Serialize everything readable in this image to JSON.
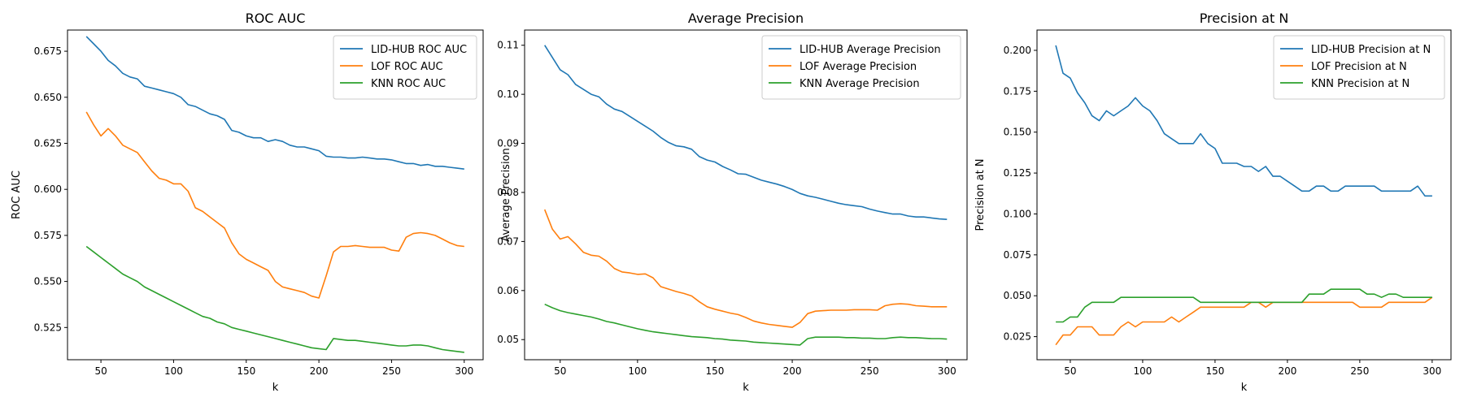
{
  "chart_data": [
    {
      "type": "line",
      "title": "ROC AUC",
      "xlabel": "k",
      "ylabel": "ROC AUC",
      "xlim": [
        27,
        313
      ],
      "ylim": [
        0.5075,
        0.6865
      ],
      "xticks": [
        50,
        100,
        150,
        200,
        250,
        300
      ],
      "yticks": [
        0.525,
        0.55,
        0.575,
        0.6,
        0.625,
        0.65,
        0.675
      ],
      "ytick_labels": [
        "0.525",
        "0.550",
        "0.575",
        "0.600",
        "0.625",
        "0.650",
        "0.675"
      ],
      "grid": false,
      "legend": "top-right",
      "x": [
        40,
        45,
        50,
        55,
        60,
        65,
        70,
        75,
        80,
        85,
        90,
        95,
        100,
        105,
        110,
        115,
        120,
        125,
        130,
        135,
        140,
        145,
        150,
        155,
        160,
        165,
        170,
        175,
        180,
        185,
        190,
        195,
        200,
        205,
        210,
        215,
        220,
        225,
        230,
        235,
        240,
        245,
        250,
        255,
        260,
        265,
        270,
        275,
        280,
        285,
        290,
        295,
        300
      ],
      "series": [
        {
          "name": "LID-HUB ROC AUC",
          "color": "#1f77b4",
          "values": [
            0.683,
            0.679,
            0.675,
            0.67,
            0.667,
            0.663,
            0.661,
            0.66,
            0.656,
            0.655,
            0.654,
            0.653,
            0.652,
            0.65,
            0.646,
            0.645,
            0.643,
            0.641,
            0.64,
            0.638,
            0.632,
            0.631,
            0.629,
            0.628,
            0.628,
            0.626,
            0.627,
            0.626,
            0.624,
            0.623,
            0.623,
            0.622,
            0.621,
            0.618,
            0.6175,
            0.6175,
            0.617,
            0.617,
            0.6175,
            0.617,
            0.6165,
            0.6165,
            0.616,
            0.615,
            0.614,
            0.614,
            0.613,
            0.6135,
            0.6125,
            0.6125,
            0.612,
            0.6115,
            0.611
          ]
        },
        {
          "name": "LOF ROC AUC",
          "color": "#ff7f0e",
          "values": [
            0.642,
            0.635,
            0.629,
            0.633,
            0.629,
            0.624,
            0.622,
            0.62,
            0.615,
            0.61,
            0.606,
            0.605,
            0.603,
            0.603,
            0.599,
            0.59,
            0.588,
            0.585,
            0.582,
            0.579,
            0.571,
            0.565,
            0.562,
            0.56,
            0.558,
            0.556,
            0.55,
            0.547,
            0.546,
            0.545,
            0.544,
            0.542,
            0.541,
            0.553,
            0.566,
            0.569,
            0.569,
            0.5695,
            0.569,
            0.5685,
            0.5685,
            0.5685,
            0.567,
            0.5665,
            0.574,
            0.576,
            0.5765,
            0.576,
            0.575,
            0.573,
            0.571,
            0.5695,
            0.569
          ]
        },
        {
          "name": "KNN ROC AUC",
          "color": "#2ca02c",
          "values": [
            0.569,
            0.566,
            0.563,
            0.56,
            0.557,
            0.554,
            0.552,
            0.55,
            0.547,
            0.545,
            0.543,
            0.541,
            0.539,
            0.537,
            0.535,
            0.533,
            0.531,
            0.53,
            0.528,
            0.527,
            0.525,
            0.524,
            0.523,
            0.522,
            0.521,
            0.52,
            0.519,
            0.518,
            0.517,
            0.516,
            0.515,
            0.514,
            0.5135,
            0.513,
            0.519,
            0.5185,
            0.518,
            0.518,
            0.5175,
            0.517,
            0.5165,
            0.516,
            0.5155,
            0.515,
            0.515,
            0.5155,
            0.5155,
            0.515,
            0.514,
            0.513,
            0.5125,
            0.512,
            0.5115
          ]
        }
      ]
    },
    {
      "type": "line",
      "title": "Average Precision",
      "xlabel": "k",
      "ylabel": "Average Precision",
      "xlim": [
        27,
        313
      ],
      "ylim": [
        0.0459,
        0.1131
      ],
      "xticks": [
        50,
        100,
        150,
        200,
        250,
        300
      ],
      "yticks": [
        0.05,
        0.06,
        0.07,
        0.08,
        0.09,
        0.1,
        0.11
      ],
      "ytick_labels": [
        "0.05",
        "0.06",
        "0.07",
        "0.08",
        "0.09",
        "0.10",
        "0.11"
      ],
      "grid": false,
      "legend": "top-right",
      "x": [
        40,
        45,
        50,
        55,
        60,
        65,
        70,
        75,
        80,
        85,
        90,
        95,
        100,
        105,
        110,
        115,
        120,
        125,
        130,
        135,
        140,
        145,
        150,
        155,
        160,
        165,
        170,
        175,
        180,
        185,
        190,
        195,
        200,
        205,
        210,
        215,
        220,
        225,
        230,
        235,
        240,
        245,
        250,
        255,
        260,
        265,
        270,
        275,
        280,
        285,
        290,
        295,
        300
      ],
      "series": [
        {
          "name": "LID-HUB Average Precision",
          "color": "#1f77b4",
          "values": [
            0.11,
            0.1075,
            0.105,
            0.104,
            0.102,
            0.101,
            0.1,
            0.0995,
            0.098,
            0.097,
            0.0965,
            0.0955,
            0.0945,
            0.0935,
            0.0925,
            0.0912,
            0.0902,
            0.0895,
            0.0893,
            0.0888,
            0.0873,
            0.0866,
            0.0862,
            0.0853,
            0.0846,
            0.0838,
            0.0837,
            0.0831,
            0.0825,
            0.0821,
            0.0817,
            0.0812,
            0.0806,
            0.0798,
            0.0793,
            0.079,
            0.0786,
            0.0782,
            0.0778,
            0.0775,
            0.0773,
            0.0771,
            0.0766,
            0.0762,
            0.0759,
            0.0756,
            0.0756,
            0.0752,
            0.075,
            0.075,
            0.0748,
            0.0746,
            0.0745
          ]
        },
        {
          "name": "LOF Average Precision",
          "color": "#ff7f0e",
          "values": [
            0.0765,
            0.0725,
            0.0705,
            0.071,
            0.0695,
            0.0678,
            0.0672,
            0.067,
            0.066,
            0.0645,
            0.0638,
            0.0636,
            0.0633,
            0.0634,
            0.0626,
            0.0608,
            0.0603,
            0.0598,
            0.0594,
            0.0589,
            0.0577,
            0.0567,
            0.0562,
            0.0558,
            0.0554,
            0.0551,
            0.0545,
            0.0538,
            0.0534,
            0.0531,
            0.0529,
            0.0527,
            0.0525,
            0.0535,
            0.0553,
            0.0558,
            0.0559,
            0.056,
            0.056,
            0.056,
            0.0561,
            0.0561,
            0.0561,
            0.056,
            0.0569,
            0.0572,
            0.0573,
            0.0572,
            0.0569,
            0.0568,
            0.0567,
            0.0567,
            0.0567
          ]
        },
        {
          "name": "KNN Average Precision",
          "color": "#2ca02c",
          "values": [
            0.0572,
            0.0565,
            0.0559,
            0.0555,
            0.0552,
            0.0549,
            0.0546,
            0.0542,
            0.0537,
            0.0534,
            0.053,
            0.0526,
            0.0522,
            0.0519,
            0.0516,
            0.0514,
            0.0512,
            0.051,
            0.0508,
            0.0506,
            0.0505,
            0.0504,
            0.0502,
            0.0501,
            0.0499,
            0.0498,
            0.0497,
            0.0495,
            0.0494,
            0.0493,
            0.0492,
            0.0491,
            0.049,
            0.0489,
            0.0502,
            0.0505,
            0.0505,
            0.0505,
            0.0505,
            0.0504,
            0.0504,
            0.0503,
            0.0503,
            0.0502,
            0.0502,
            0.0504,
            0.0505,
            0.0504,
            0.0504,
            0.0503,
            0.0502,
            0.0502,
            0.0501
          ]
        }
      ]
    },
    {
      "type": "line",
      "title": "Precision at N",
      "xlabel": "k",
      "ylabel": "Precision at N",
      "xlim": [
        27,
        313
      ],
      "ylim": [
        0.0109,
        0.2124
      ],
      "xticks": [
        50,
        100,
        150,
        200,
        250,
        300
      ],
      "yticks": [
        0.025,
        0.05,
        0.075,
        0.1,
        0.125,
        0.15,
        0.175,
        0.2
      ],
      "ytick_labels": [
        "0.025",
        "0.050",
        "0.075",
        "0.100",
        "0.125",
        "0.150",
        "0.175",
        "0.200"
      ],
      "grid": false,
      "legend": "top-right",
      "x": [
        40,
        45,
        50,
        55,
        60,
        65,
        70,
        75,
        80,
        85,
        90,
        95,
        100,
        105,
        110,
        115,
        120,
        125,
        130,
        135,
        140,
        145,
        150,
        155,
        160,
        165,
        170,
        175,
        180,
        185,
        190,
        195,
        200,
        205,
        210,
        215,
        220,
        225,
        230,
        235,
        240,
        245,
        250,
        255,
        260,
        265,
        270,
        275,
        280,
        285,
        290,
        295,
        300
      ],
      "series": [
        {
          "name": "LID-HUB Precision at N",
          "color": "#1f77b4",
          "values": [
            0.203,
            0.186,
            0.183,
            0.174,
            0.168,
            0.16,
            0.157,
            0.163,
            0.16,
            0.163,
            0.166,
            0.171,
            0.166,
            0.163,
            0.157,
            0.149,
            0.146,
            0.143,
            0.143,
            0.143,
            0.149,
            0.143,
            0.14,
            0.131,
            0.131,
            0.131,
            0.129,
            0.129,
            0.126,
            0.129,
            0.123,
            0.123,
            0.12,
            0.117,
            0.114,
            0.114,
            0.117,
            0.117,
            0.114,
            0.114,
            0.117,
            0.117,
            0.117,
            0.117,
            0.117,
            0.114,
            0.114,
            0.114,
            0.114,
            0.114,
            0.117,
            0.111,
            0.111
          ]
        },
        {
          "name": "LOF Precision at N",
          "color": "#ff7f0e",
          "values": [
            0.02,
            0.026,
            0.026,
            0.031,
            0.031,
            0.031,
            0.026,
            0.026,
            0.026,
            0.031,
            0.034,
            0.031,
            0.034,
            0.034,
            0.034,
            0.034,
            0.037,
            0.034,
            0.037,
            0.04,
            0.043,
            0.043,
            0.043,
            0.043,
            0.043,
            0.043,
            0.043,
            0.046,
            0.046,
            0.043,
            0.046,
            0.046,
            0.046,
            0.046,
            0.046,
            0.046,
            0.046,
            0.046,
            0.046,
            0.046,
            0.046,
            0.046,
            0.043,
            0.043,
            0.043,
            0.043,
            0.046,
            0.046,
            0.046,
            0.046,
            0.046,
            0.046,
            0.049
          ]
        },
        {
          "name": "KNN Precision at N",
          "color": "#2ca02c",
          "values": [
            0.034,
            0.034,
            0.037,
            0.037,
            0.043,
            0.046,
            0.046,
            0.046,
            0.046,
            0.049,
            0.049,
            0.049,
            0.049,
            0.049,
            0.049,
            0.049,
            0.049,
            0.049,
            0.049,
            0.049,
            0.046,
            0.046,
            0.046,
            0.046,
            0.046,
            0.046,
            0.046,
            0.046,
            0.046,
            0.046,
            0.046,
            0.046,
            0.046,
            0.046,
            0.046,
            0.051,
            0.051,
            0.051,
            0.054,
            0.054,
            0.054,
            0.054,
            0.054,
            0.051,
            0.051,
            0.049,
            0.051,
            0.051,
            0.049,
            0.049,
            0.049,
            0.049,
            0.049
          ]
        }
      ]
    }
  ]
}
